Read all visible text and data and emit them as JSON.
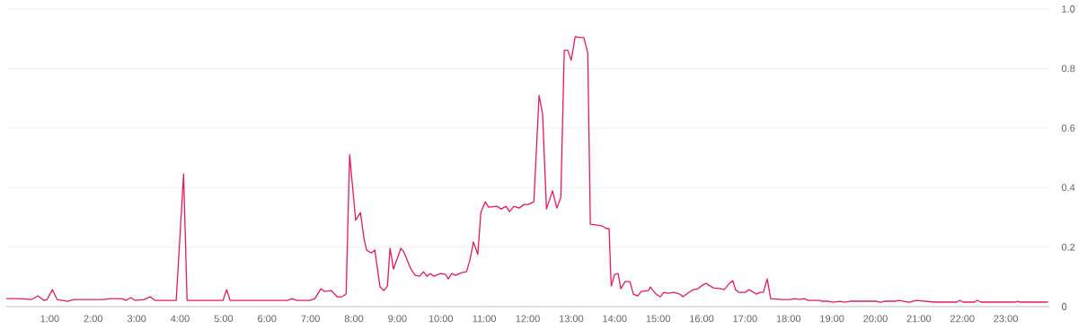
{
  "chart_data": {
    "type": "line",
    "color": "#e8185f",
    "grid": "y",
    "marker": "none",
    "line_style": "solid",
    "xlim": [
      0,
      24
    ],
    "ylim": [
      0,
      1
    ],
    "xticks": [
      {
        "value": 1,
        "label": "1:00"
      },
      {
        "value": 2,
        "label": "2:00"
      },
      {
        "value": 3,
        "label": "3:00"
      },
      {
        "value": 4,
        "label": "4:00"
      },
      {
        "value": 5,
        "label": "5:00"
      },
      {
        "value": 6,
        "label": "6:00"
      },
      {
        "value": 7,
        "label": "7:00"
      },
      {
        "value": 8,
        "label": "8:00"
      },
      {
        "value": 9,
        "label": "9:00"
      },
      {
        "value": 10,
        "label": "10:00"
      },
      {
        "value": 11,
        "label": "11:00"
      },
      {
        "value": 12,
        "label": "12:00"
      },
      {
        "value": 13,
        "label": "13:00"
      },
      {
        "value": 14,
        "label": "14:00"
      },
      {
        "value": 15,
        "label": "15:00"
      },
      {
        "value": 16,
        "label": "16:00"
      },
      {
        "value": 17,
        "label": "17:00"
      },
      {
        "value": 18,
        "label": "18:00"
      },
      {
        "value": 19,
        "label": "19:00"
      },
      {
        "value": 20,
        "label": "20:00"
      },
      {
        "value": 21,
        "label": "21:00"
      },
      {
        "value": 22,
        "label": "22:00"
      },
      {
        "value": 23,
        "label": "23:00"
      }
    ],
    "yticks": [
      0,
      0.2,
      0.4,
      0.6,
      0.8,
      {
        "value": 1,
        "label": "1.0"
      }
    ],
    "x": [
      0.0,
      0.28,
      0.59,
      0.73,
      0.86,
      0.94,
      1.06,
      1.17,
      1.41,
      1.56,
      2.24,
      2.39,
      2.65,
      2.76,
      2.86,
      2.96,
      3.17,
      3.31,
      3.42,
      3.91,
      4.08,
      4.16,
      4.99,
      5.07,
      5.15,
      6.06,
      6.47,
      6.58,
      6.68,
      6.99,
      7.1,
      7.24,
      7.32,
      7.48,
      7.61,
      7.72,
      7.82,
      7.9,
      8.04,
      8.15,
      8.23,
      8.29,
      8.4,
      8.48,
      8.6,
      8.69,
      8.77,
      8.83,
      8.91,
      9.08,
      9.16,
      9.31,
      9.41,
      9.51,
      9.6,
      9.68,
      9.76,
      9.84,
      9.99,
      10.11,
      10.17,
      10.25,
      10.34,
      10.48,
      10.59,
      10.67,
      10.75,
      10.85,
      10.92,
      11.02,
      11.1,
      11.29,
      11.39,
      11.5,
      11.58,
      11.68,
      11.8,
      11.91,
      12.01,
      12.14,
      12.26,
      12.34,
      12.43,
      12.57,
      12.67,
      12.76,
      12.84,
      12.92,
      13.0,
      13.09,
      13.21,
      13.29,
      13.38,
      13.44,
      13.6,
      13.71,
      13.81,
      13.87,
      13.92,
      14.0,
      14.08,
      14.14,
      14.24,
      14.35,
      14.43,
      14.53,
      14.61,
      14.78,
      14.82,
      14.95,
      15.05,
      15.13,
      15.23,
      15.36,
      15.5,
      15.57,
      15.71,
      15.81,
      15.92,
      16.02,
      16.1,
      16.27,
      16.45,
      16.52,
      16.64,
      16.72,
      16.78,
      16.85,
      17.01,
      17.09,
      17.26,
      17.34,
      17.42,
      17.51,
      17.59,
      17.84,
      18.04,
      18.15,
      18.25,
      18.36,
      18.46,
      18.71,
      18.77,
      18.91,
      19.04,
      19.18,
      19.29,
      19.42,
      20.02,
      20.11,
      20.21,
      20.46,
      20.53,
      20.78,
      20.94,
      21.15,
      21.36,
      21.87,
      21.94,
      22.02,
      22.28,
      22.34,
      22.43,
      22.59,
      23.21,
      23.27,
      23.33,
      23.97
    ],
    "values": [
      0.027,
      0.027,
      0.024,
      0.036,
      0.021,
      0.024,
      0.057,
      0.024,
      0.018,
      0.024,
      0.024,
      0.027,
      0.027,
      0.021,
      0.03,
      0.021,
      0.024,
      0.033,
      0.021,
      0.021,
      0.445,
      0.021,
      0.021,
      0.057,
      0.021,
      0.021,
      0.021,
      0.027,
      0.021,
      0.021,
      0.027,
      0.06,
      0.051,
      0.054,
      0.033,
      0.033,
      0.042,
      0.51,
      0.29,
      0.316,
      0.23,
      0.19,
      0.18,
      0.19,
      0.066,
      0.054,
      0.069,
      0.196,
      0.126,
      0.196,
      0.18,
      0.126,
      0.105,
      0.102,
      0.117,
      0.102,
      0.111,
      0.102,
      0.111,
      0.108,
      0.093,
      0.111,
      0.105,
      0.114,
      0.117,
      0.157,
      0.217,
      0.175,
      0.316,
      0.352,
      0.334,
      0.337,
      0.328,
      0.337,
      0.319,
      0.337,
      0.331,
      0.343,
      0.343,
      0.352,
      0.71,
      0.648,
      0.328,
      0.389,
      0.331,
      0.367,
      0.861,
      0.861,
      0.828,
      0.907,
      0.904,
      0.904,
      0.852,
      0.277,
      0.274,
      0.271,
      0.262,
      0.262,
      0.069,
      0.108,
      0.111,
      0.06,
      0.084,
      0.084,
      0.042,
      0.036,
      0.051,
      0.054,
      0.066,
      0.042,
      0.033,
      0.048,
      0.045,
      0.048,
      0.042,
      0.033,
      0.048,
      0.057,
      0.06,
      0.072,
      0.078,
      0.063,
      0.06,
      0.057,
      0.078,
      0.087,
      0.057,
      0.048,
      0.048,
      0.057,
      0.042,
      0.048,
      0.048,
      0.093,
      0.027,
      0.024,
      0.024,
      0.027,
      0.024,
      0.027,
      0.021,
      0.021,
      0.018,
      0.018,
      0.015,
      0.018,
      0.015,
      0.018,
      0.018,
      0.015,
      0.018,
      0.018,
      0.021,
      0.015,
      0.021,
      0.018,
      0.015,
      0.015,
      0.021,
      0.015,
      0.015,
      0.021,
      0.015,
      0.015,
      0.015,
      0.018,
      0.015,
      0.015
    ]
  }
}
